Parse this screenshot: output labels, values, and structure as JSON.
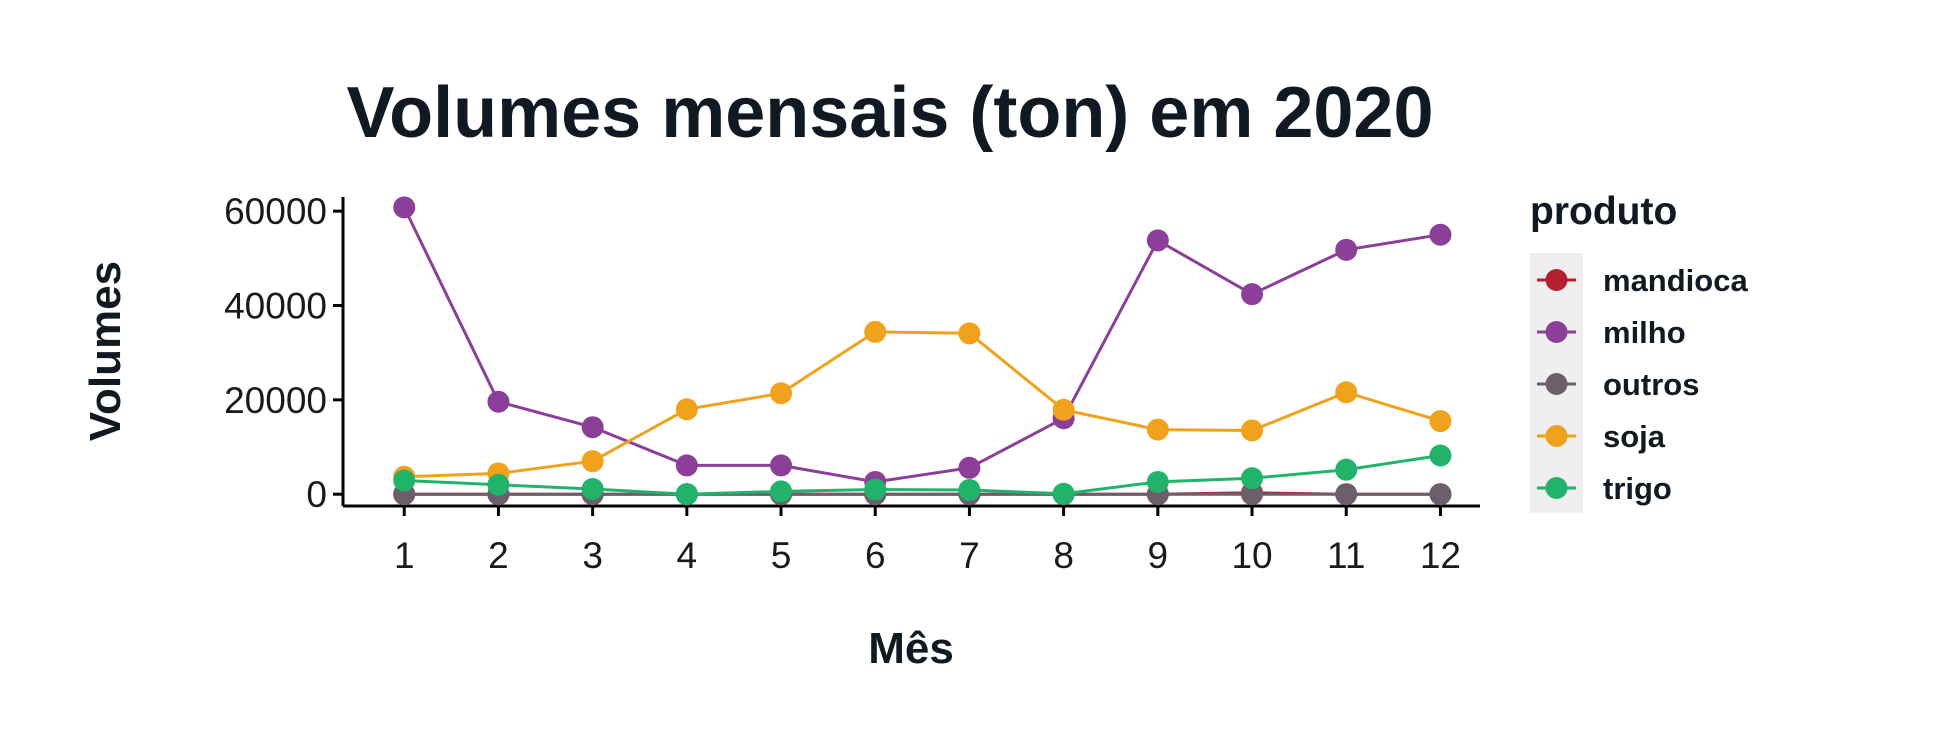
{
  "chart_data": {
    "type": "line",
    "title": "Volumes mensais (ton) em 2020",
    "xlabel": "Mês",
    "ylabel": "Volumes",
    "x": [
      1,
      2,
      3,
      4,
      5,
      6,
      7,
      8,
      9,
      10,
      11,
      12
    ],
    "x_tick_labels": [
      "1",
      "2",
      "3",
      "4",
      "5",
      "6",
      "7",
      "8",
      "9",
      "10",
      "11",
      "12"
    ],
    "ylim": [
      -2500,
      63000
    ],
    "y_ticks": [
      0,
      20000,
      40000,
      60000
    ],
    "y_tick_labels": [
      "0",
      "20000",
      "40000",
      "60000"
    ],
    "grid": false,
    "legend": {
      "title": "produto",
      "placement": "right"
    },
    "series": [
      {
        "name": "mandioca",
        "color": "#b5202e",
        "values": [
          0,
          0,
          0,
          0,
          0,
          0,
          0,
          0,
          0,
          300,
          0,
          0
        ]
      },
      {
        "name": "milho",
        "color": "#8b3f99",
        "values": [
          60800,
          19600,
          14200,
          6100,
          6100,
          2600,
          5600,
          16100,
          53800,
          42400,
          51800,
          55000
        ]
      },
      {
        "name": "outros",
        "color": "#6b5f6b",
        "values": [
          0,
          0,
          0,
          0,
          0,
          0,
          0,
          0,
          0,
          0,
          0,
          0
        ]
      },
      {
        "name": "soja",
        "color": "#f0a21c",
        "values": [
          3700,
          4400,
          7000,
          18000,
          21400,
          34400,
          34100,
          17900,
          13700,
          13500,
          21600,
          15500
        ]
      },
      {
        "name": "trigo",
        "color": "#22b36b",
        "values": [
          2900,
          2000,
          1100,
          0,
          600,
          1000,
          900,
          100,
          2600,
          3400,
          5200,
          8200
        ]
      }
    ]
  }
}
